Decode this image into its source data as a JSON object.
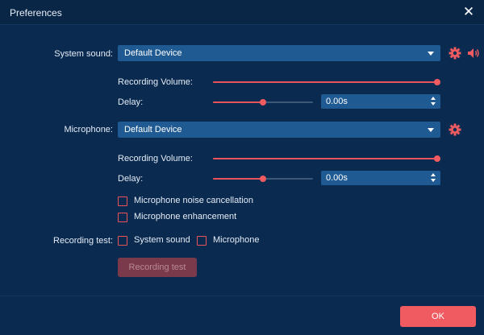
{
  "window": {
    "title": "Preferences",
    "close_glyph": "✕"
  },
  "system_sound": {
    "label": "System sound:",
    "device": "Default Device",
    "recording_volume_label": "Recording Volume:",
    "recording_volume_percent": 100,
    "delay_label": "Delay:",
    "delay_slider_percent": 50,
    "delay_value": "0.00s",
    "icons": [
      "gear-icon",
      "speaker-icon"
    ]
  },
  "microphone": {
    "label": "Microphone:",
    "device": "Default Device",
    "recording_volume_label": "Recording Volume:",
    "recording_volume_percent": 100,
    "delay_label": "Delay:",
    "delay_slider_percent": 50,
    "delay_value": "0.00s",
    "noise_cancellation_label": "Microphone noise cancellation",
    "noise_cancellation_checked": false,
    "enhancement_label": "Microphone enhancement",
    "enhancement_checked": false,
    "icons": [
      "gear-icon"
    ]
  },
  "recording_test": {
    "label": "Recording test:",
    "system_sound_label": "System sound",
    "system_sound_checked": false,
    "microphone_label": "Microphone",
    "microphone_checked": false,
    "button_label": "Recording test",
    "button_enabled": false
  },
  "footer": {
    "ok_label": "OK"
  },
  "colors": {
    "background": "#0b2a4f",
    "accent": "#f05a61",
    "field": "#1f5a93",
    "track": "#3e5877"
  }
}
